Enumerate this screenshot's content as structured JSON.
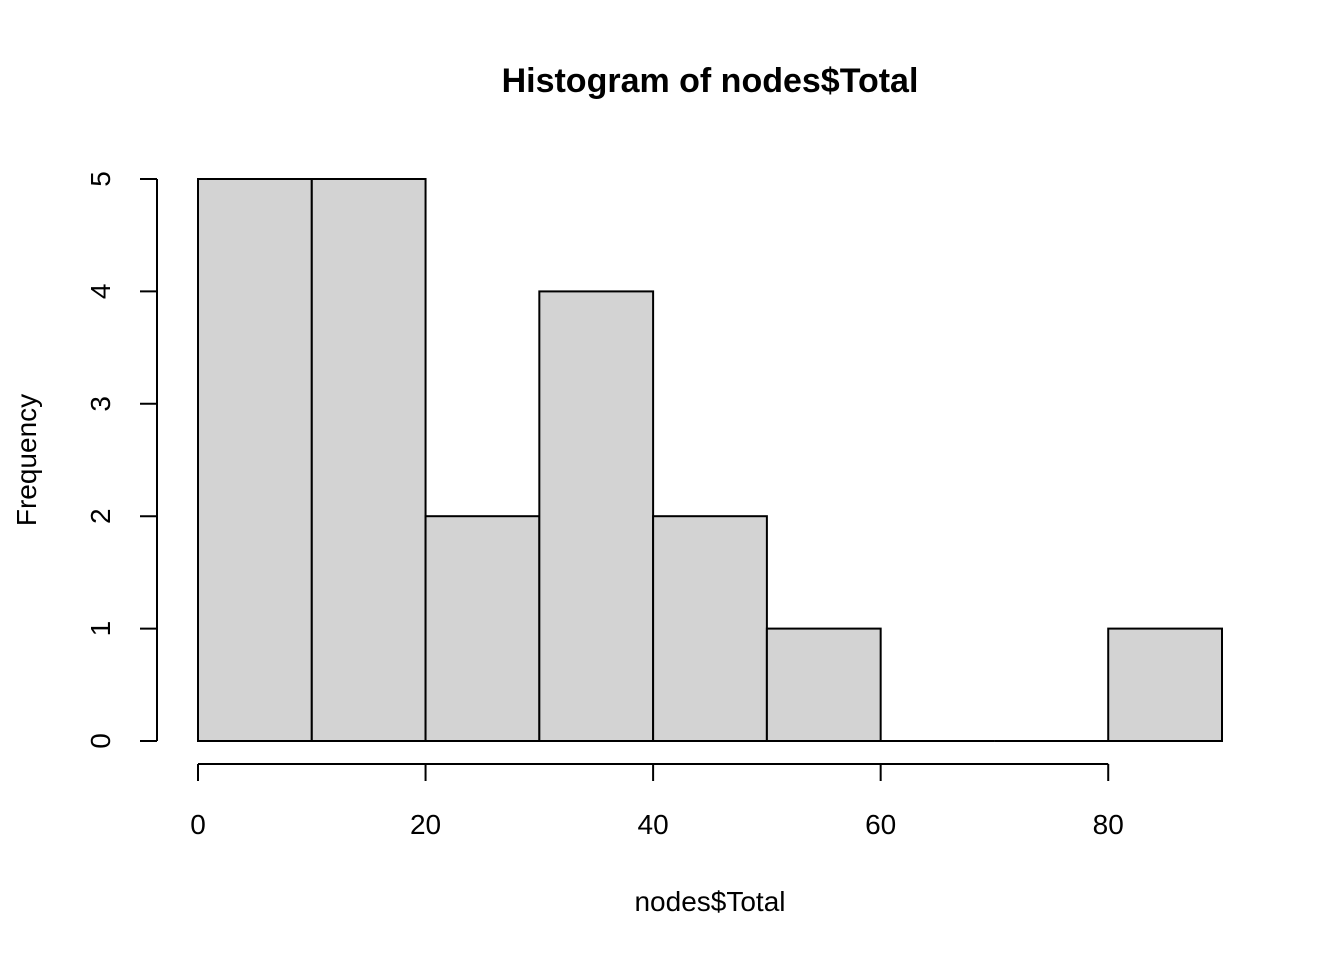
{
  "chart_data": {
    "type": "bar",
    "title": "Histogram of nodes$Total",
    "xlabel": "nodes$Total",
    "ylabel": "Frequency",
    "bins": [
      {
        "start": 0,
        "end": 10,
        "count": 5
      },
      {
        "start": 10,
        "end": 20,
        "count": 5
      },
      {
        "start": 20,
        "end": 30,
        "count": 2
      },
      {
        "start": 30,
        "end": 40,
        "count": 4
      },
      {
        "start": 40,
        "end": 50,
        "count": 2
      },
      {
        "start": 50,
        "end": 60,
        "count": 1
      },
      {
        "start": 60,
        "end": 70,
        "count": 0
      },
      {
        "start": 70,
        "end": 80,
        "count": 0
      },
      {
        "start": 80,
        "end": 90,
        "count": 1
      }
    ],
    "xlim": [
      0,
      90
    ],
    "ylim": [
      0,
      5
    ],
    "x_ticks": [
      "0",
      "20",
      "40",
      "60",
      "80"
    ],
    "y_ticks": [
      "0",
      "1",
      "2",
      "3",
      "4",
      "5"
    ],
    "bar_color": "#d3d3d3",
    "grid": false,
    "legend": "none"
  }
}
